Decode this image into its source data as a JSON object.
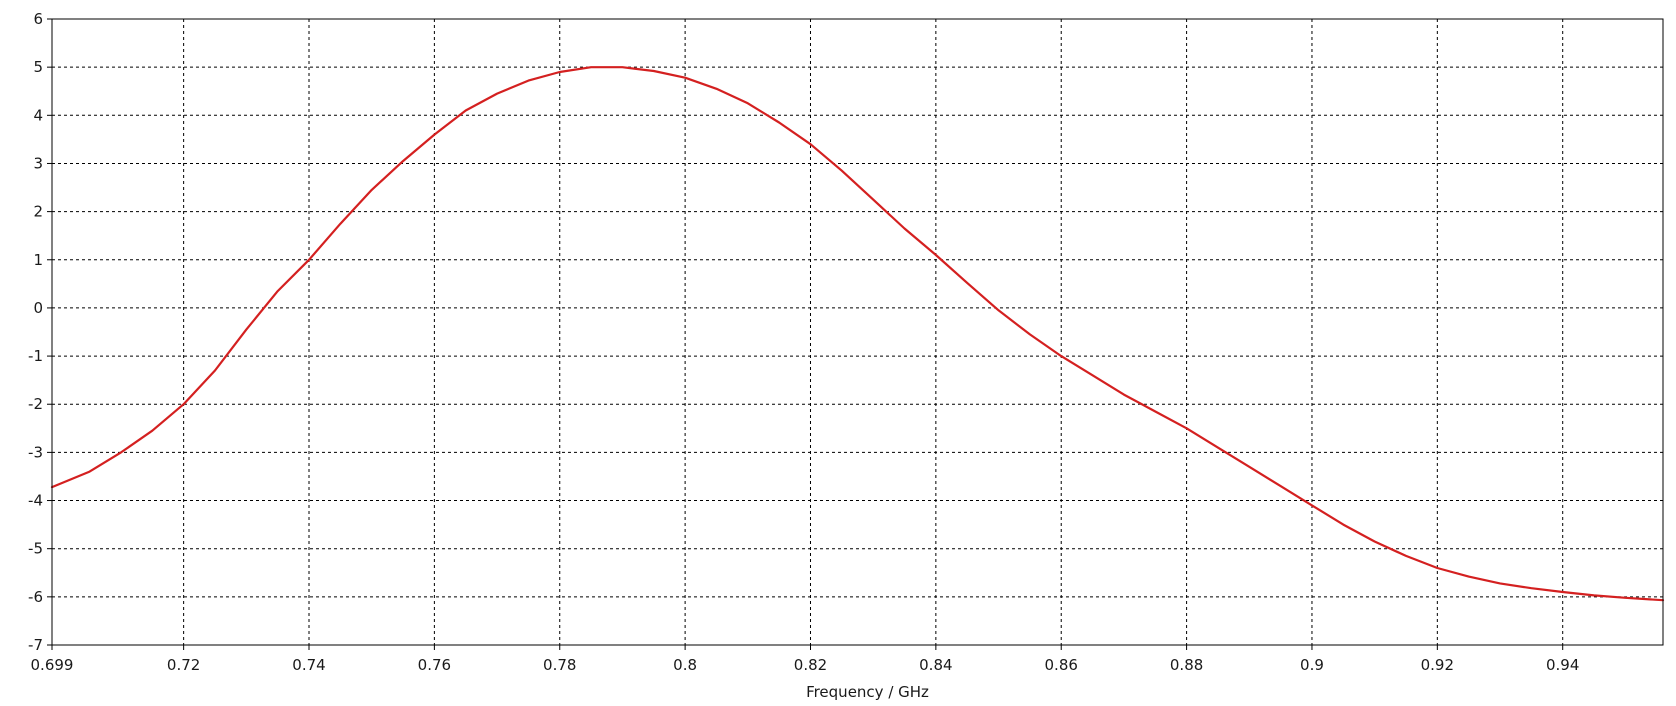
{
  "chart_data": {
    "type": "line",
    "title": "",
    "xlabel": "Frequency / GHz",
    "ylabel": "",
    "xlim": [
      0.699,
      0.956
    ],
    "ylim": [
      -7,
      6
    ],
    "grid": true,
    "legend": "none",
    "x_ticks": [
      {
        "value": 0.699,
        "label": "0.699"
      },
      {
        "value": 0.72,
        "label": "0.72"
      },
      {
        "value": 0.74,
        "label": "0.74"
      },
      {
        "value": 0.76,
        "label": "0.76"
      },
      {
        "value": 0.78,
        "label": "0.78"
      },
      {
        "value": 0.8,
        "label": "0.8"
      },
      {
        "value": 0.82,
        "label": "0.82"
      },
      {
        "value": 0.84,
        "label": "0.84"
      },
      {
        "value": 0.86,
        "label": "0.86"
      },
      {
        "value": 0.88,
        "label": "0.88"
      },
      {
        "value": 0.9,
        "label": "0.9"
      },
      {
        "value": 0.92,
        "label": "0.92"
      },
      {
        "value": 0.94,
        "label": "0.94"
      }
    ],
    "y_ticks": [
      {
        "value": 6,
        "label": "6"
      },
      {
        "value": 5,
        "label": "5"
      },
      {
        "value": 4,
        "label": "4"
      },
      {
        "value": 3,
        "label": "3"
      },
      {
        "value": 2,
        "label": "2"
      },
      {
        "value": 1,
        "label": "1"
      },
      {
        "value": 0,
        "label": "0"
      },
      {
        "value": -1,
        "label": "-1"
      },
      {
        "value": -2,
        "label": "-2"
      },
      {
        "value": -3,
        "label": "-3"
      },
      {
        "value": -4,
        "label": "-4"
      },
      {
        "value": -5,
        "label": "-5"
      },
      {
        "value": -6,
        "label": "-6"
      },
      {
        "value": -7,
        "label": "-7"
      }
    ],
    "series": [
      {
        "color": "#d42020",
        "x": [
          0.699,
          0.705,
          0.71,
          0.715,
          0.72,
          0.725,
          0.73,
          0.735,
          0.74,
          0.745,
          0.75,
          0.755,
          0.76,
          0.765,
          0.77,
          0.775,
          0.78,
          0.785,
          0.79,
          0.795,
          0.8,
          0.805,
          0.81,
          0.815,
          0.82,
          0.825,
          0.83,
          0.835,
          0.84,
          0.845,
          0.85,
          0.855,
          0.86,
          0.865,
          0.87,
          0.875,
          0.88,
          0.885,
          0.89,
          0.895,
          0.9,
          0.905,
          0.91,
          0.915,
          0.92,
          0.925,
          0.93,
          0.935,
          0.94,
          0.945,
          0.95,
          0.956
        ],
        "y": [
          -3.72,
          -3.4,
          -3.0,
          -2.55,
          -2.0,
          -1.3,
          -0.45,
          0.35,
          1.0,
          1.75,
          2.45,
          3.05,
          3.6,
          4.1,
          4.45,
          4.72,
          4.9,
          5.0,
          5.0,
          4.92,
          4.78,
          4.55,
          4.25,
          3.85,
          3.4,
          2.85,
          2.25,
          1.65,
          1.1,
          0.52,
          -0.05,
          -0.55,
          -1.0,
          -1.4,
          -1.8,
          -2.15,
          -2.5,
          -2.9,
          -3.3,
          -3.7,
          -4.1,
          -4.5,
          -4.85,
          -5.15,
          -5.4,
          -5.58,
          -5.72,
          -5.82,
          -5.9,
          -5.97,
          -6.02,
          -6.07
        ]
      }
    ]
  }
}
